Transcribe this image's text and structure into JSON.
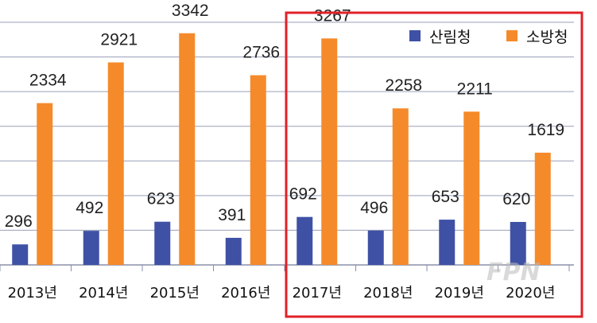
{
  "chart_data": {
    "type": "bar",
    "categories": [
      "2013년",
      "2014년",
      "2015년",
      "2016년",
      "2017년",
      "2018년",
      "2019년",
      "2020년"
    ],
    "series": [
      {
        "name": "산림청",
        "color": "#3F51A5",
        "values": [
          296,
          492,
          623,
          391,
          692,
          496,
          653,
          620
        ]
      },
      {
        "name": "소방청",
        "color": "#F58A2A",
        "values": [
          2334,
          2921,
          3342,
          2736,
          3267,
          2258,
          2211,
          1619
        ]
      }
    ],
    "ylim": [
      0,
      3500
    ],
    "grid": true,
    "legend_position": "top-right",
    "highlight": {
      "from_category": "2017년",
      "to_category": "2020년",
      "color": "#E02127"
    }
  },
  "watermark": "FPN"
}
